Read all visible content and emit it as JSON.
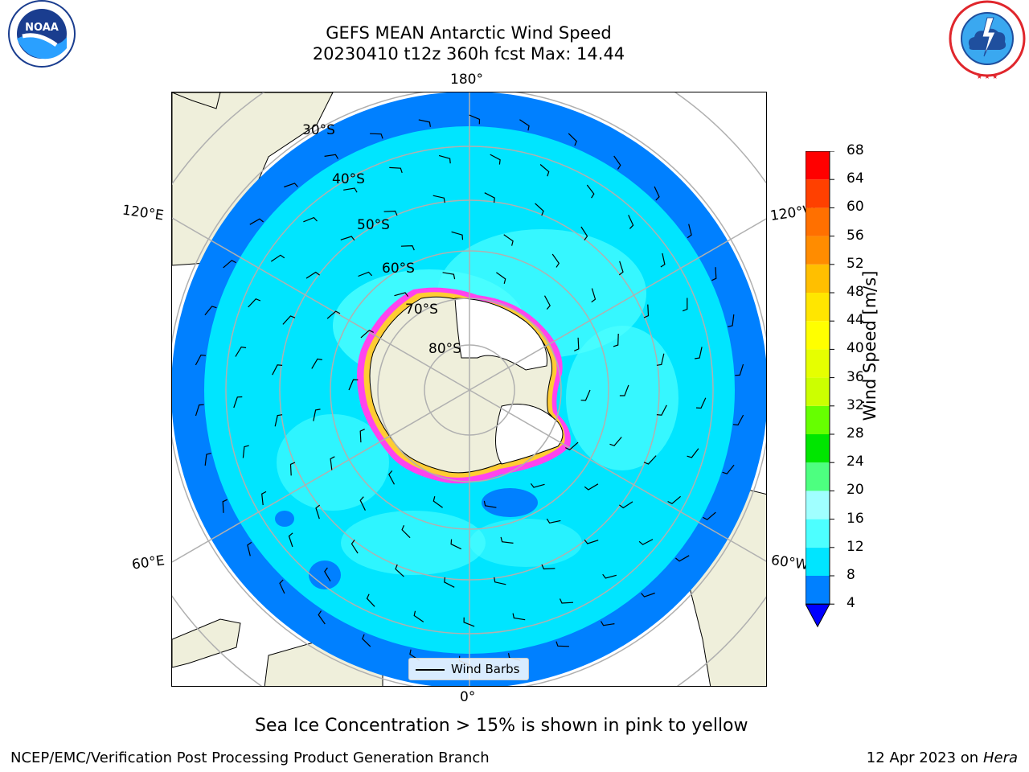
{
  "header": {
    "title_line1": "GEFS MEAN Antarctic Wind Speed",
    "title_line2": "20230410 t12z 360h fcst   Max: 14.44"
  },
  "logos": {
    "left_icon": "noaa-logo-icon",
    "left_text": "NOAA",
    "left_ring_text": "NATIONAL OCEANIC AND ATMOSPHERIC ADMINISTRATION · U.S. DEPARTMENT OF COMMERCE",
    "right_icon": "nws-logo-icon",
    "right_ring_text": "NATIONAL WEATHER SERVICE"
  },
  "map": {
    "projection": "south polar stereographic",
    "longitude_labels": {
      "top": "180°",
      "bottom": "0°",
      "upper_left": "120°E",
      "upper_right": "120°W",
      "lower_left": "60°E",
      "lower_right": "60°W"
    },
    "latitude_labels": [
      "30°S",
      "40°S",
      "50°S",
      "60°S",
      "70°S",
      "80°S"
    ],
    "legend_label": "Wind Barbs",
    "colors": {
      "land": "#efefdb",
      "ice_sheet": "#ffffff",
      "graticule": "#b0b0b0",
      "sea_ice_edge_pink": "#ff44ee",
      "sea_ice_edge_yellow": "#ffcc33"
    }
  },
  "colorbar": {
    "label": "Wind Speed [m/s]",
    "ticks": [
      "68",
      "64",
      "60",
      "56",
      "52",
      "48",
      "44",
      "40",
      "36",
      "32",
      "28",
      "24",
      "20",
      "16",
      "12",
      "8",
      "4"
    ],
    "bands": [
      {
        "from": 4,
        "to": 8,
        "color": "#0080ff"
      },
      {
        "from": 8,
        "to": 12,
        "color": "#00e5ff"
      },
      {
        "from": 12,
        "to": 16,
        "color": "#4dffff"
      },
      {
        "from": 16,
        "to": 20,
        "color": "#a0ffff"
      },
      {
        "from": 20,
        "to": 24,
        "color": "#4dff80"
      },
      {
        "from": 24,
        "to": 28,
        "color": "#00e600"
      },
      {
        "from": 28,
        "to": 32,
        "color": "#66ff00"
      },
      {
        "from": 32,
        "to": 36,
        "color": "#ccff00"
      },
      {
        "from": 36,
        "to": 40,
        "color": "#e6ff00"
      },
      {
        "from": 40,
        "to": 44,
        "color": "#ffff00"
      },
      {
        "from": 44,
        "to": 48,
        "color": "#ffe600"
      },
      {
        "from": 48,
        "to": 52,
        "color": "#ffbf00"
      },
      {
        "from": 52,
        "to": 56,
        "color": "#ff8c00"
      },
      {
        "from": 56,
        "to": 60,
        "color": "#ff7000"
      },
      {
        "from": 60,
        "to": 64,
        "color": "#ff4000"
      },
      {
        "from": 64,
        "to": 68,
        "color": "#ff0000"
      }
    ],
    "extend_color": "#0000ff"
  },
  "footer": {
    "sea_ice_note": "Sea Ice Concentration > 15% is shown in pink to yellow",
    "left_credit": "NCEP/EMC/Verification Post Processing Product Generation Branch",
    "right_date": "12 Apr 2023 on ",
    "right_host": "Hera"
  }
}
